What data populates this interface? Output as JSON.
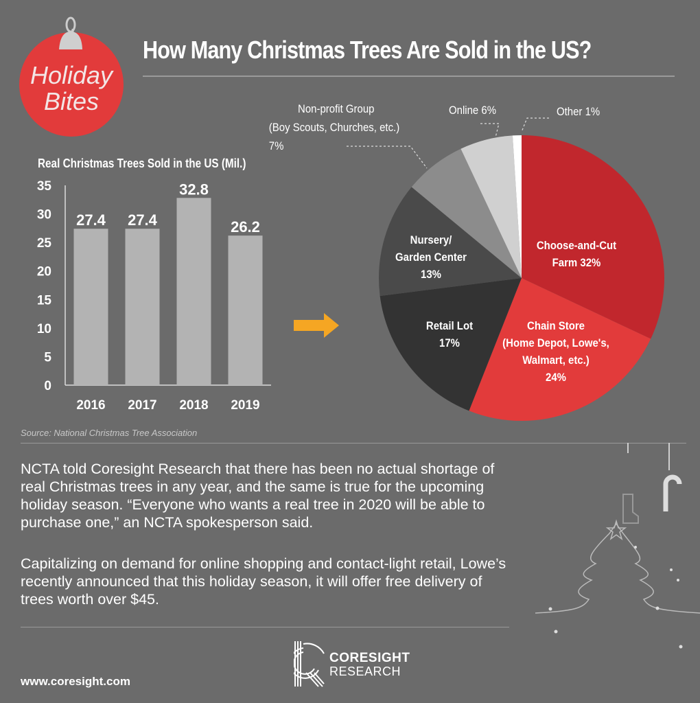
{
  "header": {
    "title": "How Many Christmas Trees Are Sold in the US?",
    "logo_text": "Holiday Bites"
  },
  "chart_data": [
    {
      "type": "bar",
      "title": "Real Christmas Trees Sold in the US (Mil.)",
      "categories": [
        "2016",
        "2017",
        "2018",
        "2019"
      ],
      "values": [
        27.4,
        27.4,
        32.8,
        26.2
      ],
      "data_labels": [
        "27.4",
        "27.4",
        "32.8",
        "26.2"
      ],
      "ylim": [
        0,
        35
      ],
      "yticks": [
        "0",
        "5",
        "10",
        "15",
        "20",
        "25",
        "30",
        "35"
      ],
      "bar_color": "#b3b3b3",
      "grid": false
    },
    {
      "type": "pie",
      "slices": [
        {
          "label_lines": [
            "Choose-and-Cut",
            "Farm 32%"
          ],
          "value": 32,
          "color": "#c1272d"
        },
        {
          "label_lines": [
            "Chain Store",
            "(Home Depot, Lowe's,",
            "Walmart, etc.)",
            "24%"
          ],
          "value": 24,
          "color": "#e23b3b"
        },
        {
          "label_lines": [
            "Retail Lot",
            "17%"
          ],
          "value": 17,
          "color": "#333333"
        },
        {
          "label_lines": [
            "Nursery/",
            "Garden Center",
            "13%"
          ],
          "value": 13,
          "color": "#4a4a4a"
        },
        {
          "label_lines": [
            "Non-profit Group",
            "(Boy Scouts, Churches, etc.)",
            "7%"
          ],
          "value": 7,
          "color": "#8c8c8c"
        },
        {
          "label_lines": [
            "Online 6%"
          ],
          "value": 6,
          "color": "#d0d0d0"
        },
        {
          "label_lines": [
            "Other 1%"
          ],
          "value": 1,
          "color": "#ffffff"
        }
      ]
    }
  ],
  "source": "Source: National Christmas Tree Association",
  "body": {
    "p1": "NCTA told Coresight Research that there has been no actual shortage of real Christmas trees in any year, and the same is true for the upcoming holiday season. “Everyone who wants a real tree in 2020 will be able to purchase one,” an NCTA spokesperson said.",
    "p2": "Capitalizing on demand for online shopping and contact-light retail, Lowe’s recently announced that this holiday season, it will offer free delivery of trees worth over $45."
  },
  "footer": {
    "url": "www.coresight.com",
    "brand_line1": "CORESIGHT",
    "brand_line2": "RESEARCH"
  },
  "colors": {
    "background": "#6b6b6b",
    "arrow": "#f5a623",
    "ornament": "#e23b3b"
  }
}
